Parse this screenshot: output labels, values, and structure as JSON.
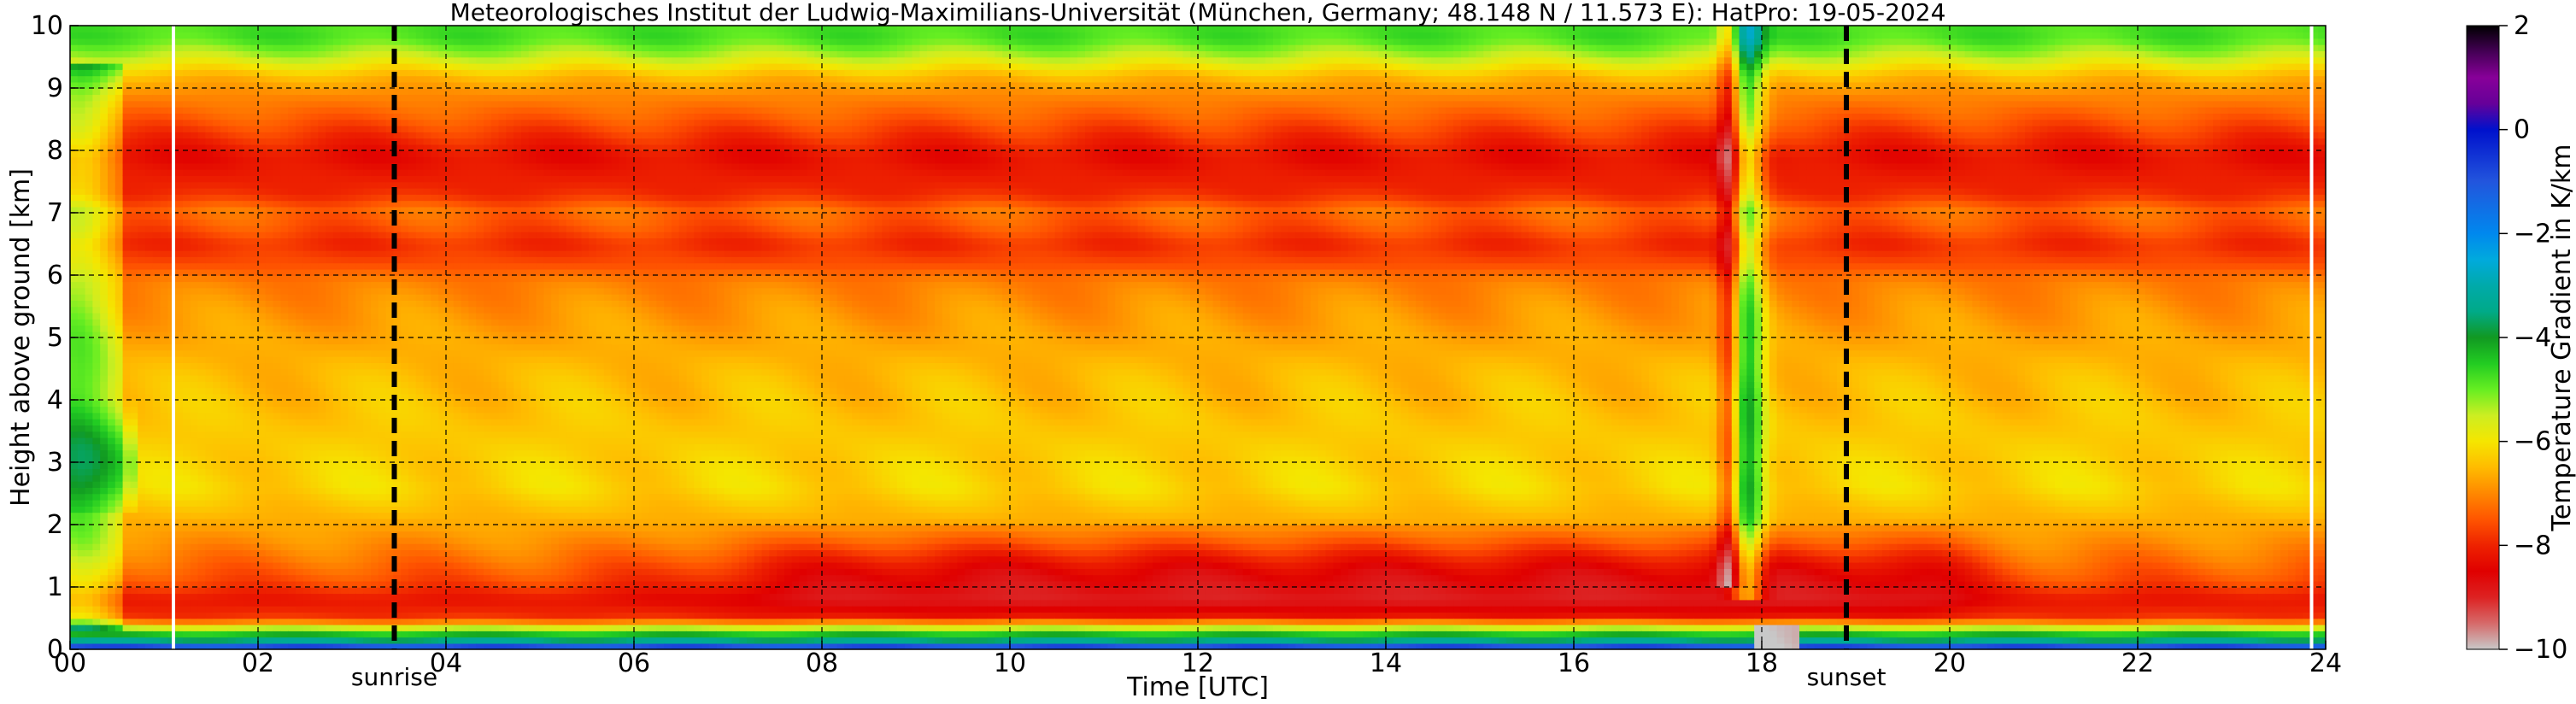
{
  "chart_data": {
    "type": "heatmap",
    "title": "Meteorologisches Institut der Ludwig-Maximilians-Universität (München, Germany; 48.148 N / 11.573 E):    HatPro: 19-05-2024",
    "xlabel": "Time [UTC]",
    "ylabel": "Height above ground [km]",
    "xlim": [
      0,
      24
    ],
    "ylim": [
      0,
      10
    ],
    "x_ticks": [
      {
        "value": 0,
        "label": "00"
      },
      {
        "value": 2,
        "label": "02"
      },
      {
        "value": 4,
        "label": "04"
      },
      {
        "value": 6,
        "label": "06"
      },
      {
        "value": 8,
        "label": "08"
      },
      {
        "value": 10,
        "label": "10"
      },
      {
        "value": 12,
        "label": "12"
      },
      {
        "value": 14,
        "label": "14"
      },
      {
        "value": 16,
        "label": "16"
      },
      {
        "value": 18,
        "label": "18"
      },
      {
        "value": 20,
        "label": "20"
      },
      {
        "value": 22,
        "label": "22"
      },
      {
        "value": 24,
        "label": "24"
      }
    ],
    "y_ticks": [
      {
        "value": 0,
        "label": "0"
      },
      {
        "value": 1,
        "label": "1"
      },
      {
        "value": 2,
        "label": "2"
      },
      {
        "value": 3,
        "label": "3"
      },
      {
        "value": 4,
        "label": "4"
      },
      {
        "value": 5,
        "label": "5"
      },
      {
        "value": 6,
        "label": "6"
      },
      {
        "value": 7,
        "label": "7"
      },
      {
        "value": 8,
        "label": "8"
      },
      {
        "value": 9,
        "label": "9"
      },
      {
        "value": 10,
        "label": "10"
      }
    ],
    "grid": true,
    "events": [
      {
        "name": "sunrise",
        "time": 3.45
      },
      {
        "name": "sunset",
        "time": 18.9
      }
    ],
    "data_gaps": [
      1.1,
      23.85
    ],
    "colorbar": {
      "label": "Temperature Gradient in K/km",
      "range": [
        -10,
        2
      ],
      "ticks": [
        {
          "value": 2,
          "label": "2"
        },
        {
          "value": 0,
          "label": "0"
        },
        {
          "value": -2,
          "label": "−2"
        },
        {
          "value": -4,
          "label": "−4"
        },
        {
          "value": -6,
          "label": "−6"
        },
        {
          "value": -8,
          "label": "−8"
        },
        {
          "value": -10,
          "label": "−10"
        }
      ],
      "stops": [
        {
          "value": -10.0,
          "color": "#c8c8c8"
        },
        {
          "value": -9.5,
          "color": "#d66a6a"
        },
        {
          "value": -9.0,
          "color": "#dd2222"
        },
        {
          "value": -8.5,
          "color": "#e00000"
        },
        {
          "value": -8.0,
          "color": "#ee2200"
        },
        {
          "value": -7.5,
          "color": "#ff5500"
        },
        {
          "value": -7.0,
          "color": "#ff8800"
        },
        {
          "value": -6.5,
          "color": "#ffbb00"
        },
        {
          "value": -6.0,
          "color": "#f5e600"
        },
        {
          "value": -5.5,
          "color": "#ccee22"
        },
        {
          "value": -5.0,
          "color": "#66ee22"
        },
        {
          "value": -4.5,
          "color": "#22cc22"
        },
        {
          "value": -4.0,
          "color": "#119922"
        },
        {
          "value": -3.5,
          "color": "#00aa88"
        },
        {
          "value": -3.0,
          "color": "#00aaaa"
        },
        {
          "value": -2.5,
          "color": "#00aadd"
        },
        {
          "value": -2.0,
          "color": "#0088ee"
        },
        {
          "value": -1.0,
          "color": "#2255dd"
        },
        {
          "value": 0.0,
          "color": "#0011cc"
        },
        {
          "value": 0.5,
          "color": "#660099"
        },
        {
          "value": 1.0,
          "color": "#880099"
        },
        {
          "value": 1.5,
          "color": "#440055"
        },
        {
          "value": 2.0,
          "color": "#000000"
        }
      ]
    },
    "profile": {
      "heights_km": [
        0.05,
        0.15,
        0.3,
        0.5,
        0.8,
        1.1,
        1.45,
        1.75,
        2.1,
        2.6,
        3.2,
        3.8,
        4.4,
        5.0,
        5.5,
        5.9,
        6.2,
        6.5,
        6.8,
        7.05,
        7.3,
        7.6,
        7.9,
        8.2,
        8.55,
        8.9,
        9.2,
        9.5,
        9.8
      ],
      "values": [
        -1.0,
        -3.5,
        -4.8,
        -7.8,
        -8.2,
        -7.6,
        -7.2,
        -6.9,
        -6.6,
        -6.2,
        -6.3,
        -6.4,
        -6.5,
        -6.7,
        -6.9,
        -7.1,
        -7.6,
        -7.9,
        -7.5,
        -7.3,
        -7.9,
        -8.1,
        -8.3,
        -7.9,
        -7.4,
        -7.0,
        -6.5,
        -5.5,
        -4.8
      ]
    }
  }
}
